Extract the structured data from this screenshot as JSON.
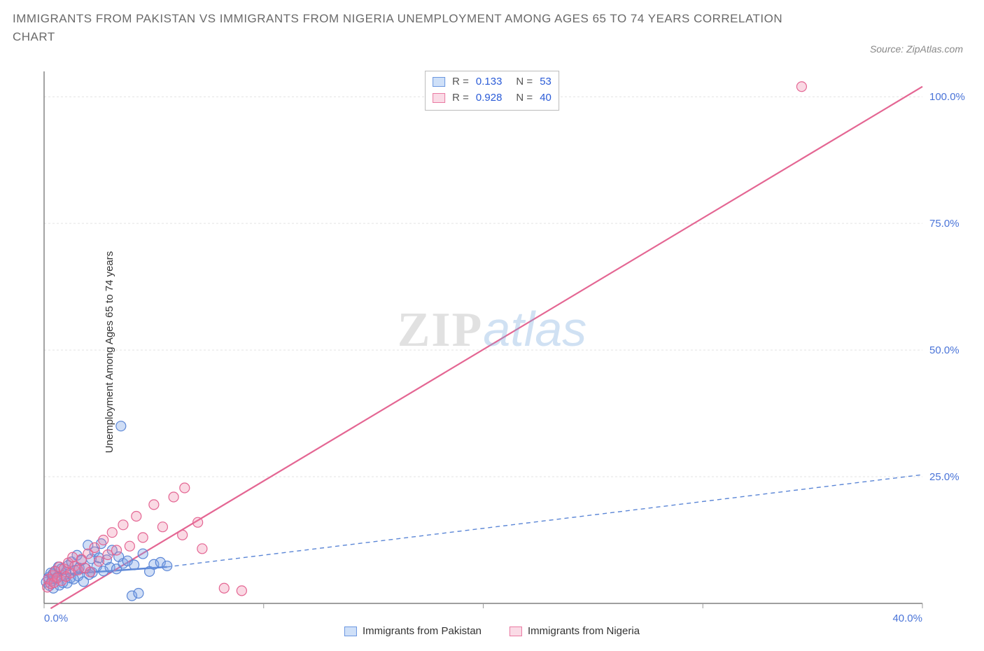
{
  "title": "IMMIGRANTS FROM PAKISTAN VS IMMIGRANTS FROM NIGERIA UNEMPLOYMENT AMONG AGES 65 TO 74 YEARS CORRELATION CHART",
  "source_prefix": "Source: ",
  "source_name": "ZipAtlas.com",
  "ylabel": "Unemployment Among Ages 65 to 74 years",
  "watermark_a": "ZIP",
  "watermark_b": "atlas",
  "chart": {
    "type": "scatter",
    "plot_bg": "#ffffff",
    "axis_color": "#666666",
    "grid_color": "#e3e3e3",
    "tick_color": "#999999",
    "tick_label_color": "#4a74d8",
    "tick_fontsize": 15,
    "x_min": 0,
    "x_max": 40,
    "y_min": 0,
    "y_max": 105,
    "x_ticks": [
      0,
      10,
      20,
      30,
      40
    ],
    "x_tick_labels": [
      "0.0%",
      "",
      "",
      "",
      "40.0%"
    ],
    "y_ticks": [
      25,
      50,
      75,
      100
    ],
    "y_tick_labels": [
      "25.0%",
      "50.0%",
      "75.0%",
      "100.0%"
    ],
    "marker_radius": 7,
    "marker_stroke_width": 1.2,
    "series": [
      {
        "name": "Immigrants from Pakistan",
        "color_fill": "rgba(120,160,230,0.35)",
        "color_stroke": "#5b86d6",
        "swatch_fill": "#cfe0f8",
        "swatch_border": "#6b97e0",
        "R": "0.133",
        "N": "53",
        "regression": {
          "x1": 0,
          "y1": 5.5,
          "x2": 5.6,
          "y2": 7.2,
          "dash": "none",
          "width": 2.5
        },
        "extrapolation": {
          "x1": 5.6,
          "y1": 7.2,
          "x2": 40,
          "y2": 25.4,
          "dash": "6,5",
          "width": 1.4
        },
        "points": [
          [
            0.1,
            4.2
          ],
          [
            0.2,
            5.1
          ],
          [
            0.25,
            3.5
          ],
          [
            0.3,
            6.0
          ],
          [
            0.35,
            4.4
          ],
          [
            0.4,
            5.8
          ],
          [
            0.42,
            3.0
          ],
          [
            0.5,
            6.4
          ],
          [
            0.55,
            4.9
          ],
          [
            0.6,
            5.2
          ],
          [
            0.65,
            7.2
          ],
          [
            0.7,
            3.6
          ],
          [
            0.78,
            6.8
          ],
          [
            0.85,
            4.1
          ],
          [
            0.9,
            5.5
          ],
          [
            1.0,
            6.2
          ],
          [
            1.05,
            4.0
          ],
          [
            1.1,
            7.5
          ],
          [
            1.2,
            5.0
          ],
          [
            1.25,
            8.2
          ],
          [
            1.35,
            4.8
          ],
          [
            1.4,
            6.5
          ],
          [
            1.5,
            9.5
          ],
          [
            1.55,
            5.4
          ],
          [
            1.6,
            7.0
          ],
          [
            1.7,
            8.5
          ],
          [
            1.8,
            4.3
          ],
          [
            1.9,
            6.9
          ],
          [
            2.0,
            11.5
          ],
          [
            2.05,
            5.7
          ],
          [
            2.15,
            8.8
          ],
          [
            2.2,
            6.1
          ],
          [
            2.3,
            10.2
          ],
          [
            2.4,
            7.3
          ],
          [
            2.5,
            9.0
          ],
          [
            2.6,
            11.8
          ],
          [
            2.7,
            6.4
          ],
          [
            2.85,
            8.6
          ],
          [
            3.0,
            7.1
          ],
          [
            3.1,
            10.5
          ],
          [
            3.3,
            6.8
          ],
          [
            3.4,
            9.2
          ],
          [
            3.6,
            7.9
          ],
          [
            3.8,
            8.4
          ],
          [
            4.0,
            1.5
          ],
          [
            4.1,
            7.6
          ],
          [
            4.3,
            2.0
          ],
          [
            4.5,
            9.8
          ],
          [
            4.8,
            6.3
          ],
          [
            5.0,
            7.7
          ],
          [
            5.3,
            8.1
          ],
          [
            5.6,
            7.4
          ],
          [
            3.5,
            35.0
          ]
        ]
      },
      {
        "name": "Immigrants from Nigeria",
        "color_fill": "rgba(240,130,165,0.3)",
        "color_stroke": "#e46693",
        "swatch_fill": "#fadbe6",
        "swatch_border": "#ea7aa2",
        "R": "0.928",
        "N": "40",
        "regression": {
          "x1": 0.3,
          "y1": -1,
          "x2": 40,
          "y2": 102,
          "dash": "none",
          "width": 2.2
        },
        "points": [
          [
            0.15,
            3.2
          ],
          [
            0.2,
            4.8
          ],
          [
            0.3,
            3.9
          ],
          [
            0.4,
            5.5
          ],
          [
            0.45,
            4.1
          ],
          [
            0.5,
            6.3
          ],
          [
            0.6,
            5.0
          ],
          [
            0.7,
            7.2
          ],
          [
            0.8,
            4.5
          ],
          [
            0.9,
            6.8
          ],
          [
            1.0,
            5.3
          ],
          [
            1.1,
            8.0
          ],
          [
            1.2,
            6.0
          ],
          [
            1.3,
            9.1
          ],
          [
            1.4,
            7.4
          ],
          [
            1.55,
            6.6
          ],
          [
            1.7,
            8.7
          ],
          [
            1.85,
            7.0
          ],
          [
            2.0,
            9.8
          ],
          [
            2.1,
            6.2
          ],
          [
            2.3,
            11.0
          ],
          [
            2.5,
            8.3
          ],
          [
            2.7,
            12.5
          ],
          [
            2.9,
            9.6
          ],
          [
            3.1,
            14.0
          ],
          [
            3.3,
            10.5
          ],
          [
            3.6,
            15.5
          ],
          [
            3.9,
            11.3
          ],
          [
            4.2,
            17.2
          ],
          [
            4.5,
            13.0
          ],
          [
            5.0,
            19.5
          ],
          [
            5.4,
            15.1
          ],
          [
            5.9,
            21.0
          ],
          [
            6.4,
            22.8
          ],
          [
            6.3,
            13.5
          ],
          [
            7.0,
            16.0
          ],
          [
            7.2,
            10.8
          ],
          [
            8.2,
            3.0
          ],
          [
            9.0,
            2.5
          ],
          [
            34.5,
            102.0
          ]
        ]
      }
    ]
  }
}
